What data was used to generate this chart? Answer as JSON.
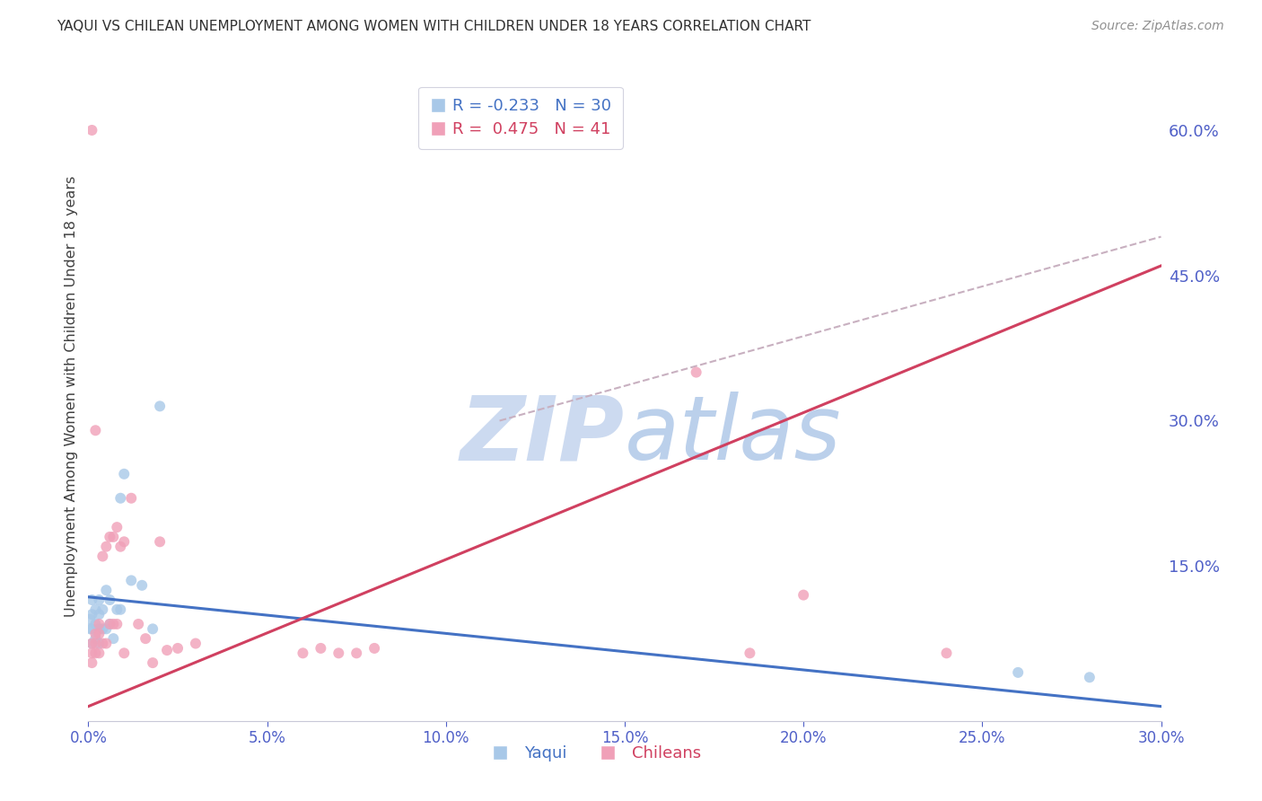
{
  "title": "YAQUI VS CHILEAN UNEMPLOYMENT AMONG WOMEN WITH CHILDREN UNDER 18 YEARS CORRELATION CHART",
  "source": "Source: ZipAtlas.com",
  "ylabel": "Unemployment Among Women with Children Under 18 years",
  "legend_r": [
    -0.233,
    0.475
  ],
  "legend_n": [
    30,
    41
  ],
  "yaqui_color": "#a8c8e8",
  "chilean_color": "#f0a0b8",
  "yaqui_line_color": "#4472c4",
  "chilean_line_color": "#d04060",
  "ref_line_color": "#c8b0c0",
  "axis_color": "#5060c8",
  "title_color": "#303030",
  "source_color": "#909090",
  "background_color": "#ffffff",
  "grid_color": "#d8d8e8",
  "xlim": [
    0.0,
    0.3
  ],
  "ylim": [
    -0.01,
    0.66
  ],
  "xticks": [
    0.0,
    0.05,
    0.1,
    0.15,
    0.2,
    0.25,
    0.3
  ],
  "yticks_right": [
    0.15,
    0.3,
    0.45,
    0.6
  ],
  "yaqui_x": [
    0.0005,
    0.0005,
    0.001,
    0.001,
    0.001,
    0.001,
    0.002,
    0.002,
    0.002,
    0.003,
    0.003,
    0.003,
    0.003,
    0.004,
    0.004,
    0.005,
    0.005,
    0.006,
    0.006,
    0.007,
    0.008,
    0.009,
    0.009,
    0.01,
    0.012,
    0.015,
    0.018,
    0.02,
    0.26,
    0.28
  ],
  "yaqui_y": [
    0.085,
    0.095,
    0.07,
    0.085,
    0.1,
    0.115,
    0.075,
    0.09,
    0.105,
    0.07,
    0.085,
    0.1,
    0.115,
    0.085,
    0.105,
    0.085,
    0.125,
    0.09,
    0.115,
    0.075,
    0.105,
    0.22,
    0.105,
    0.245,
    0.135,
    0.13,
    0.085,
    0.315,
    0.04,
    0.035
  ],
  "chilean_x": [
    0.001,
    0.001,
    0.001,
    0.001,
    0.002,
    0.002,
    0.002,
    0.003,
    0.003,
    0.003,
    0.004,
    0.004,
    0.005,
    0.005,
    0.006,
    0.006,
    0.007,
    0.007,
    0.008,
    0.008,
    0.009,
    0.01,
    0.01,
    0.012,
    0.014,
    0.016,
    0.018,
    0.02,
    0.022,
    0.025,
    0.03,
    0.06,
    0.065,
    0.07,
    0.075,
    0.08,
    0.17,
    0.2,
    0.002,
    0.185,
    0.24
  ],
  "chilean_y": [
    0.05,
    0.06,
    0.07,
    0.6,
    0.06,
    0.07,
    0.08,
    0.06,
    0.08,
    0.09,
    0.07,
    0.16,
    0.07,
    0.17,
    0.09,
    0.18,
    0.09,
    0.18,
    0.09,
    0.19,
    0.17,
    0.06,
    0.175,
    0.22,
    0.09,
    0.075,
    0.05,
    0.175,
    0.063,
    0.065,
    0.07,
    0.06,
    0.065,
    0.06,
    0.06,
    0.065,
    0.35,
    0.12,
    0.29,
    0.06,
    0.06
  ],
  "yaqui_trend_x": [
    0.0,
    0.3
  ],
  "yaqui_trend_y": [
    0.118,
    0.005
  ],
  "chilean_trend_x": [
    0.0,
    0.3
  ],
  "chilean_trend_y": [
    0.005,
    0.46
  ],
  "ref_line_x": [
    0.115,
    0.3
  ],
  "ref_line_y": [
    0.3,
    0.49
  ],
  "watermark_zip": "ZIP",
  "watermark_atlas": "atlas",
  "watermark_color": "#c8d8f0",
  "marker_size": 75,
  "marker_alpha": 0.8
}
